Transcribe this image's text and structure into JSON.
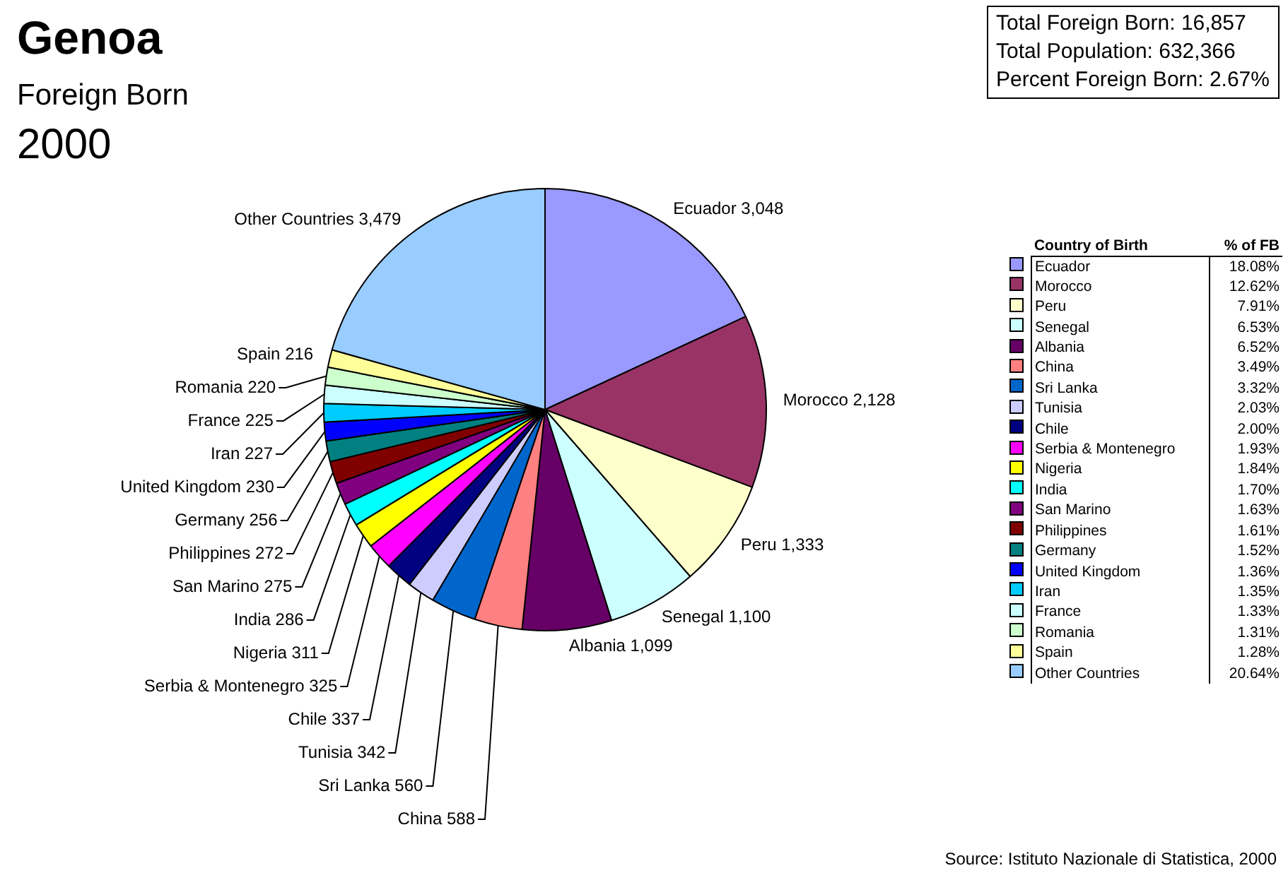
{
  "chart_data": {
    "type": "pie",
    "title": "Genoa",
    "subtitle": "Foreign Born",
    "categories": [
      "Ecuador",
      "Morocco",
      "Peru",
      "Senegal",
      "Albania",
      "China",
      "Sri Lanka",
      "Tunisia",
      "Chile",
      "Serbia & Montenegro",
      "Nigeria",
      "India",
      "San Marino",
      "Philippines",
      "Germany",
      "United Kingdom",
      "Iran",
      "France",
      "Romania",
      "Spain",
      "Other Countries"
    ],
    "values": [
      3048,
      2128,
      1333,
      1100,
      1099,
      588,
      560,
      342,
      337,
      325,
      311,
      286,
      275,
      272,
      256,
      230,
      227,
      225,
      220,
      216,
      3479
    ],
    "colors": [
      "#9999ff",
      "#993366",
      "#ffffcc",
      "#ccffff",
      "#660066",
      "#ff8080",
      "#0066cc",
      "#ccccff",
      "#000080",
      "#ff00ff",
      "#ffff00",
      "#00ffff",
      "#800080",
      "#800000",
      "#008080",
      "#0000ff",
      "#00ccff",
      "#ccffff",
      "#ccffcc",
      "#ffff99",
      "#99ccff"
    ],
    "value_labels": [
      "3,048",
      "2,128",
      "1,333",
      "1,100",
      "1,099",
      "588",
      "560",
      "342",
      "337",
      "325",
      "311",
      "286",
      "275",
      "272",
      "256",
      "230",
      "227",
      "225",
      "220",
      "216",
      "3,479"
    ],
    "legend": "right",
    "legend_title": "Country of Birth",
    "annotations": [
      "2000",
      "Total Foreign Born: 16,857",
      "Total Population: 632,366",
      "Percent Foreign Born: 2.67%",
      "% of FB",
      "Source: Istituto Nazionale di Statistica, 2000",
      "18.08%",
      "12.62%",
      "7.91%",
      "6.53%",
      "6.52%",
      "3.49%",
      "3.32%",
      "2.03%",
      "2.00%",
      "1.93%",
      "1.84%",
      "1.70%",
      "1.63%",
      "1.61%",
      "1.52%",
      "1.36%",
      "1.35%",
      "1.33%",
      "1.31%",
      "1.28%",
      "20.64%"
    ]
  }
}
